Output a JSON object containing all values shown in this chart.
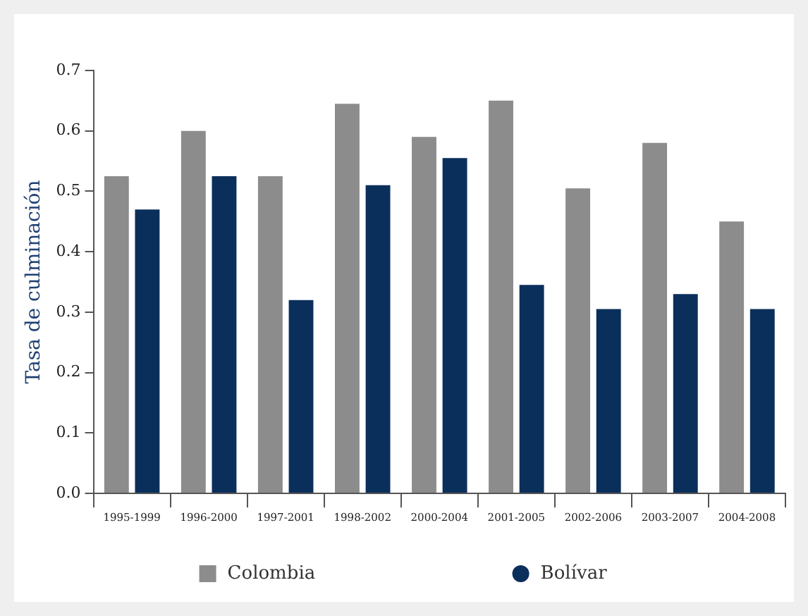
{
  "chart_data": {
    "type": "bar",
    "ylabel": "Tasa de culminación",
    "categories": [
      "1995-1999",
      "1996-2000",
      "1997-2001",
      "1998-2002",
      "2000-2004",
      "2001-2005",
      "2002-2006",
      "2003-2007",
      "2004-2008"
    ],
    "series": [
      {
        "name": "Colombia",
        "color": "#8c8c8c",
        "values": [
          0.525,
          0.6,
          0.525,
          0.645,
          0.59,
          0.65,
          0.505,
          0.58,
          0.45
        ]
      },
      {
        "name": "Bolívar",
        "color": "#0b2f5b",
        "values": [
          0.47,
          0.525,
          0.32,
          0.51,
          0.555,
          0.345,
          0.305,
          0.33,
          0.305
        ]
      }
    ],
    "ylim": [
      0,
      0.7
    ],
    "yticks": [
      {
        "value": 0,
        "label": "0.0"
      },
      0.1,
      0.2,
      0.3,
      0.4,
      0.5,
      0.6,
      0.7
    ],
    "grid": false,
    "legend": "bottom"
  }
}
